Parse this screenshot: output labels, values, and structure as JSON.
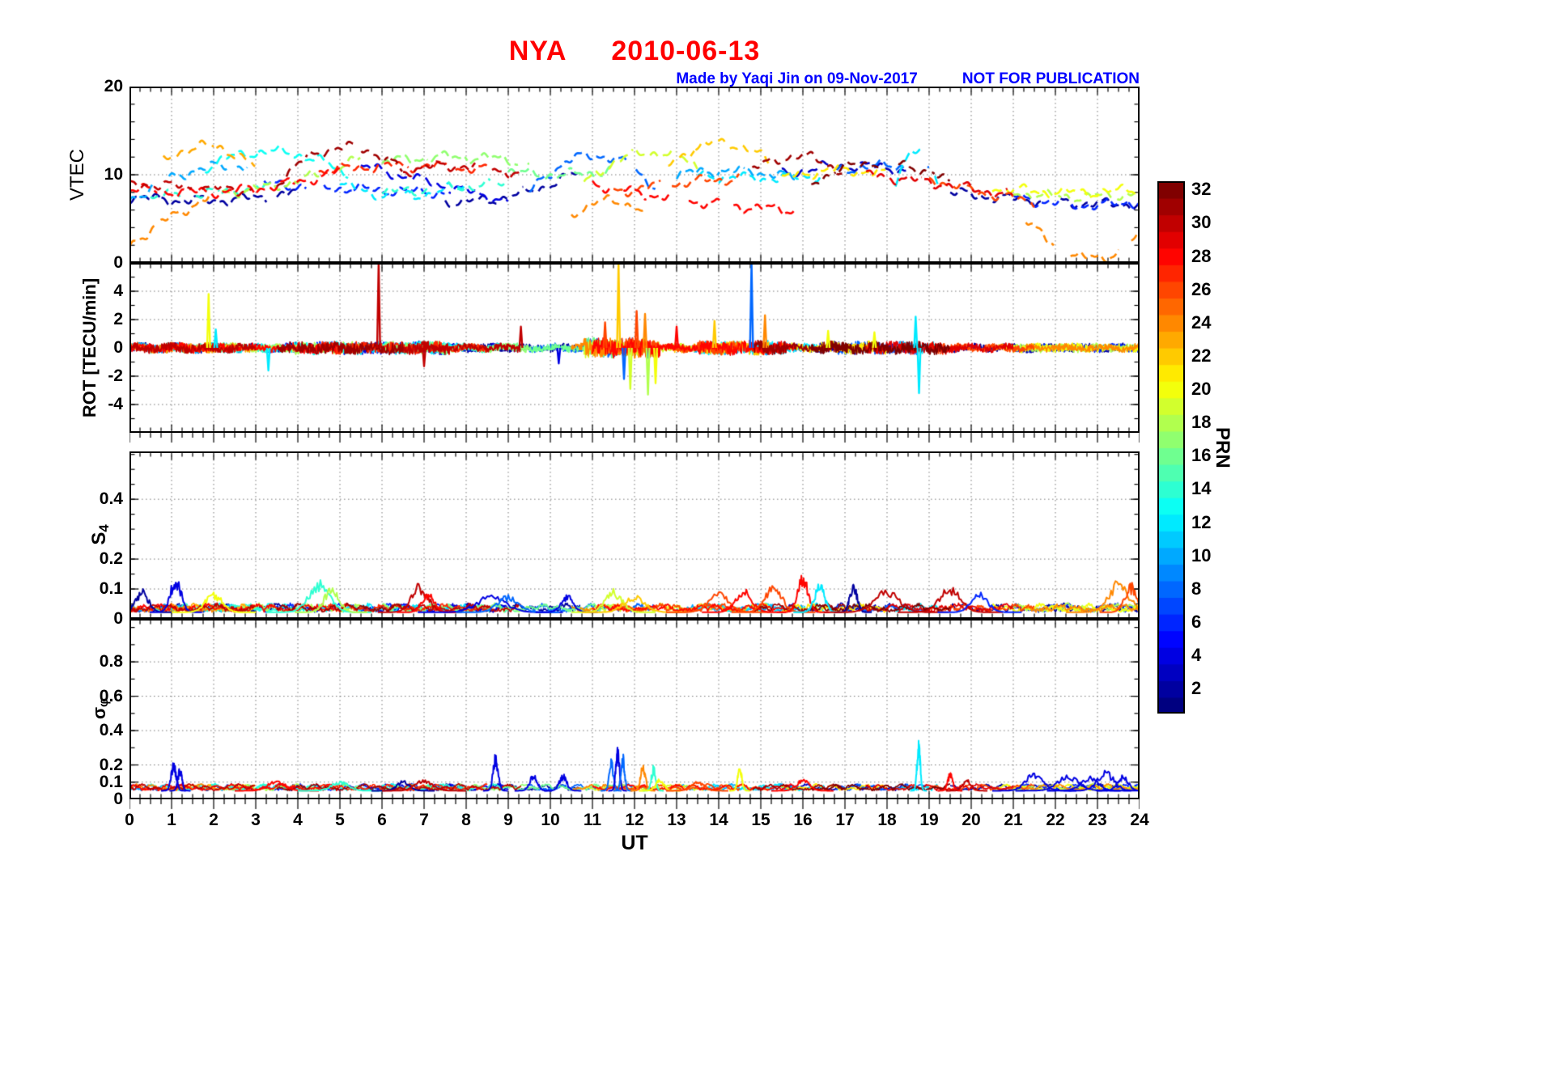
{
  "title": {
    "station": "NYA",
    "date": "2010-06-13",
    "color": "#ff0000"
  },
  "annotation": {
    "made_by": "Made by Yaqi Jin on 09-Nov-2017",
    "notice": "NOT FOR PUBLICATION",
    "color": "#0000ff"
  },
  "xaxis": {
    "label": "UT",
    "min": 0,
    "max": 24,
    "minor_step": 0.25,
    "ticks": [
      0,
      1,
      2,
      3,
      4,
      5,
      6,
      7,
      8,
      9,
      10,
      11,
      12,
      13,
      14,
      15,
      16,
      17,
      18,
      19,
      20,
      21,
      22,
      23,
      24
    ]
  },
  "colorbar": {
    "label": "PRN",
    "colormap": "jet",
    "min": 0.5,
    "max": 32.5,
    "ticks": [
      2,
      4,
      6,
      8,
      10,
      12,
      14,
      16,
      18,
      20,
      22,
      24,
      26,
      28,
      30,
      32
    ]
  },
  "chart_data": [
    {
      "name": "VTEC",
      "type": "line",
      "ylabel": "VTEC",
      "ylabel_sub": "",
      "ylim": [
        0,
        20
      ],
      "yminor": 2,
      "grid_y": [
        10
      ],
      "yticks": [
        {
          "v": 0,
          "label": "0"
        },
        {
          "v": 10,
          "label": "10"
        },
        {
          "v": 20,
          "label": "20"
        }
      ],
      "style": "dashed satellite passes, colored by PRN (jet colormap)",
      "arcs": [
        {
          "prn": 24,
          "t0": 0,
          "t1": 2.2,
          "y": [
            2,
            5.5,
            8
          ]
        },
        {
          "prn": 23,
          "t0": 0.8,
          "t1": 3,
          "y": [
            11.5,
            13.2,
            10.8
          ]
        },
        {
          "prn": 28,
          "t0": 0,
          "t1": 5,
          "y": [
            8.5,
            8.2,
            10.4
          ]
        },
        {
          "prn": 30,
          "t0": 0,
          "t1": 3,
          "y": [
            9,
            8.6,
            8.2
          ]
        },
        {
          "prn": 2,
          "t0": 0,
          "t1": 4,
          "y": [
            7.5,
            7.1,
            8
          ]
        },
        {
          "prn": 10,
          "t0": 0,
          "t1": 2.8,
          "y": [
            7,
            10.3,
            11
          ]
        },
        {
          "prn": 13,
          "t0": 1.8,
          "t1": 5.2,
          "y": [
            10.8,
            12.6,
            10
          ]
        },
        {
          "prn": 18,
          "t0": 2.2,
          "t1": 5.5,
          "y": [
            8,
            9.2,
            11.8
          ]
        },
        {
          "prn": 31,
          "t0": 3.5,
          "t1": 6.5,
          "y": [
            9,
            13.1,
            10.4
          ]
        },
        {
          "prn": 6,
          "t0": 3.2,
          "t1": 7.5,
          "y": [
            9,
            8.4,
            8
          ]
        },
        {
          "prn": 4,
          "t0": 5.5,
          "t1": 9,
          "y": [
            11,
            9,
            7
          ]
        },
        {
          "prn": 12,
          "t0": 5,
          "t1": 8,
          "y": [
            9,
            7.6,
            9
          ]
        },
        {
          "prn": 17,
          "t0": 6,
          "t1": 9.5,
          "y": [
            11.4,
            12,
            11.4
          ]
        },
        {
          "prn": 27,
          "t0": 4.5,
          "t1": 8.5,
          "y": [
            10.4,
            11,
            10.5
          ]
        },
        {
          "prn": 30,
          "t0": 6.5,
          "t1": 9.3,
          "y": [
            10.4,
            11,
            10
          ]
        },
        {
          "prn": 2,
          "t0": 7.5,
          "t1": 10.7,
          "y": [
            7,
            7.6,
            10.4
          ]
        },
        {
          "prn": 8,
          "t0": 9.5,
          "t1": 12.5,
          "y": [
            8,
            12.2,
            8.5
          ]
        },
        {
          "prn": 19,
          "t0": 10.8,
          "t1": 13.5,
          "y": [
            9,
            12.4,
            11
          ]
        },
        {
          "prn": 24,
          "t0": 10.5,
          "t1": 12.3,
          "y": [
            5.5,
            7,
            5.6
          ]
        },
        {
          "prn": 28,
          "t0": 11,
          "t1": 15.8,
          "y": [
            9,
            7,
            6
          ]
        },
        {
          "prn": 26,
          "t0": 11.5,
          "t1": 14.5,
          "y": [
            8,
            9,
            9.6
          ]
        },
        {
          "prn": 22,
          "t0": 12.8,
          "t1": 15.2,
          "y": [
            11,
            13.6,
            11.4
          ]
        },
        {
          "prn": 12,
          "t0": 13.5,
          "t1": 16.5,
          "y": [
            10,
            9.6,
            10
          ]
        },
        {
          "prn": 31,
          "t0": 14.8,
          "t1": 17,
          "y": [
            10.4,
            12.1,
            10
          ]
        },
        {
          "prn": 3,
          "t0": 15.5,
          "t1": 18.5,
          "y": [
            10,
            11,
            10.4
          ]
        },
        {
          "prn": 32,
          "t0": 16.2,
          "t1": 19.5,
          "y": [
            9,
            11.4,
            9
          ]
        },
        {
          "prn": 12,
          "t0": 18.2,
          "t1": 19.2,
          "y": [
            9,
            13,
            9
          ]
        },
        {
          "prn": 29,
          "t0": 17.5,
          "t1": 21,
          "y": [
            10,
            9,
            7.6
          ]
        },
        {
          "prn": 26,
          "t0": 19,
          "t1": 21.5,
          "y": [
            9.6,
            8,
            7
          ]
        },
        {
          "prn": 2,
          "t0": 19.5,
          "t1": 24,
          "y": [
            8,
            7,
            6.6
          ]
        },
        {
          "prn": 6,
          "t0": 21,
          "t1": 24,
          "y": [
            7.6,
            6.6,
            7
          ]
        },
        {
          "prn": 18,
          "t0": 21,
          "t1": 24,
          "y": [
            8,
            7.5,
            8
          ]
        },
        {
          "prn": 24,
          "t0": 21.3,
          "t1": 24,
          "y": [
            5,
            0.6,
            3
          ]
        },
        {
          "prn": 20,
          "t0": 20.5,
          "t1": 24,
          "y": [
            8.6,
            8,
            8.4
          ]
        },
        {
          "prn": 14,
          "t0": 0.5,
          "t1": 3.5,
          "y": [
            7.5,
            8,
            8.6
          ]
        },
        {
          "prn": 16,
          "t0": 9,
          "t1": 11.5,
          "y": [
            10.4,
            10,
            10.5
          ]
        },
        {
          "prn": 10,
          "t0": 13,
          "t1": 16,
          "y": [
            10,
            10.4,
            9.5
          ]
        },
        {
          "prn": 21,
          "t0": 15.5,
          "t1": 18,
          "y": [
            9.5,
            10.5,
            10
          ]
        },
        {
          "prn": 8,
          "t0": 16.8,
          "t1": 19,
          "y": [
            10.4,
            11,
            10.6
          ]
        },
        {
          "prn": 14,
          "t0": 6,
          "t1": 9,
          "y": [
            8,
            8.5,
            9
          ]
        }
      ]
    },
    {
      "name": "ROT",
      "type": "line",
      "ylabel": "ROT [TECU/min]",
      "ylabel_sub": "",
      "ylim": [
        -6,
        6
      ],
      "yminor": 1,
      "grid_y": [
        -4,
        -2,
        0,
        2,
        4
      ],
      "yticks": [
        {
          "v": -4,
          "label": "-4"
        },
        {
          "v": -2,
          "label": "-2"
        },
        {
          "v": 0,
          "label": "0"
        },
        {
          "v": 2,
          "label": "2"
        },
        {
          "v": 4,
          "label": "4"
        }
      ],
      "noise_amp": 0.42,
      "activity": [
        {
          "t0": 10.8,
          "t1": 12.6,
          "mult": 2.6
        },
        {
          "t0": 3.8,
          "t1": 7.6,
          "mult": 1.6
        },
        {
          "t0": 13.5,
          "t1": 15.6,
          "mult": 1.8
        },
        {
          "t0": 16.4,
          "t1": 19.4,
          "mult": 1.6
        },
        {
          "t0": 0,
          "t1": 2.5,
          "mult": 1.2
        }
      ],
      "events": [
        {
          "t": 1.88,
          "prn": 20,
          "amp": 3.8
        },
        {
          "t": 2.05,
          "prn": 12,
          "amp": 1.3
        },
        {
          "t": 3.3,
          "prn": 12,
          "amp": -1.6
        },
        {
          "t": 5.92,
          "prn": 30,
          "amp": 6
        },
        {
          "t": 7.0,
          "prn": 30,
          "amp": -1.3
        },
        {
          "t": 9.3,
          "prn": 30,
          "amp": 1.5
        },
        {
          "t": 10.2,
          "prn": 4,
          "amp": -1.1
        },
        {
          "t": 11.3,
          "prn": 26,
          "amp": 1.8
        },
        {
          "t": 11.62,
          "prn": 22,
          "amp": 6
        },
        {
          "t": 11.75,
          "prn": 8,
          "amp": -2.2
        },
        {
          "t": 11.9,
          "prn": 19,
          "amp": -2.9
        },
        {
          "t": 12.05,
          "prn": 26,
          "amp": 2.6
        },
        {
          "t": 12.25,
          "prn": 24,
          "amp": 2.4
        },
        {
          "t": 12.32,
          "prn": 18,
          "amp": -3.3
        },
        {
          "t": 12.5,
          "prn": 20,
          "amp": -2.5
        },
        {
          "t": 13.0,
          "prn": 28,
          "amp": 1.5
        },
        {
          "t": 13.9,
          "prn": 22,
          "amp": 1.9
        },
        {
          "t": 14.78,
          "prn": 8,
          "amp": 6
        },
        {
          "t": 15.1,
          "prn": 24,
          "amp": 2.3
        },
        {
          "t": 16.6,
          "prn": 20,
          "amp": 1.2
        },
        {
          "t": 17.7,
          "prn": 20,
          "amp": 1.1
        },
        {
          "t": 18.68,
          "prn": 12,
          "amp": 2.2
        },
        {
          "t": 18.76,
          "prn": 12,
          "amp": -3.2
        }
      ]
    },
    {
      "name": "S4",
      "type": "line",
      "ylabel": "S",
      "ylabel_sub": "4",
      "ylim": [
        0,
        0.56
      ],
      "yminor": 0.05,
      "grid_y": [
        0.1,
        0.2,
        0.4
      ],
      "yticks": [
        {
          "v": 0,
          "label": "0"
        },
        {
          "v": 0.1,
          "label": "0.1"
        },
        {
          "v": 0.2,
          "label": "0.2"
        },
        {
          "v": 0.4,
          "label": "0.4"
        }
      ],
      "base": 0.022,
      "events": [
        {
          "t": 0.3,
          "prn": 2,
          "amp": 0.08,
          "w": 0.3
        },
        {
          "t": 1.1,
          "prn": 4,
          "amp": 0.13,
          "w": 0.25
        },
        {
          "t": 2.0,
          "prn": 20,
          "amp": 0.07,
          "w": 0.4
        },
        {
          "t": 4.5,
          "prn": 14,
          "amp": 0.11,
          "w": 0.5
        },
        {
          "t": 4.8,
          "prn": 18,
          "amp": 0.09,
          "w": 0.35
        },
        {
          "t": 6.9,
          "prn": 30,
          "amp": 0.1,
          "w": 0.4
        },
        {
          "t": 7.1,
          "prn": 28,
          "amp": 0.07,
          "w": 0.3
        },
        {
          "t": 8.6,
          "prn": 4,
          "amp": 0.06,
          "w": 0.7
        },
        {
          "t": 9.0,
          "prn": 8,
          "amp": 0.06,
          "w": 0.5
        },
        {
          "t": 10.4,
          "prn": 4,
          "amp": 0.06,
          "w": 0.3
        },
        {
          "t": 11.5,
          "prn": 19,
          "amp": 0.08,
          "w": 0.4
        },
        {
          "t": 12.0,
          "prn": 22,
          "amp": 0.06,
          "w": 0.5
        },
        {
          "t": 14.0,
          "prn": 26,
          "amp": 0.07,
          "w": 0.5
        },
        {
          "t": 14.6,
          "prn": 28,
          "amp": 0.08,
          "w": 0.4
        },
        {
          "t": 15.3,
          "prn": 26,
          "amp": 0.1,
          "w": 0.4
        },
        {
          "t": 16.0,
          "prn": 28,
          "amp": 0.13,
          "w": 0.25
        },
        {
          "t": 16.4,
          "prn": 12,
          "amp": 0.1,
          "w": 0.25
        },
        {
          "t": 17.2,
          "prn": 2,
          "amp": 0.1,
          "w": 0.18
        },
        {
          "t": 18.0,
          "prn": 30,
          "amp": 0.08,
          "w": 0.6
        },
        {
          "t": 19.5,
          "prn": 30,
          "amp": 0.09,
          "w": 0.5
        },
        {
          "t": 20.2,
          "prn": 6,
          "amp": 0.07,
          "w": 0.4
        },
        {
          "t": 23.5,
          "prn": 24,
          "amp": 0.11,
          "w": 0.5
        },
        {
          "t": 23.8,
          "prn": 26,
          "amp": 0.1,
          "w": 0.3
        }
      ]
    },
    {
      "name": "sigma_phi",
      "type": "line",
      "ylabel": "σ",
      "ylabel_sub": "φ",
      "ylim": [
        0,
        1.05
      ],
      "yminor": 0.1,
      "grid_y": [
        0.1,
        0.2,
        0.4,
        0.6,
        0.8
      ],
      "yticks": [
        {
          "v": 0,
          "label": "0"
        },
        {
          "v": 0.1,
          "label": "0.1"
        },
        {
          "v": 0.2,
          "label": "0.2"
        },
        {
          "v": 0.4,
          "label": "0.4"
        },
        {
          "v": 0.6,
          "label": "0.6"
        },
        {
          "v": 0.8,
          "label": "0.8"
        }
      ],
      "base": 0.05,
      "events": [
        {
          "t": 1.05,
          "prn": 4,
          "amp": 0.17,
          "w": 0.12
        },
        {
          "t": 1.2,
          "prn": 4,
          "amp": 0.14,
          "w": 0.1
        },
        {
          "t": 3.5,
          "prn": 28,
          "amp": 0.07,
          "w": 0.4
        },
        {
          "t": 5.0,
          "prn": 14,
          "amp": 0.06,
          "w": 0.4
        },
        {
          "t": 6.5,
          "prn": 2,
          "amp": 0.06,
          "w": 0.3
        },
        {
          "t": 7.0,
          "prn": 30,
          "amp": 0.07,
          "w": 0.4
        },
        {
          "t": 8.7,
          "prn": 4,
          "amp": 0.22,
          "w": 0.12
        },
        {
          "t": 9.6,
          "prn": 4,
          "amp": 0.1,
          "w": 0.18
        },
        {
          "t": 10.3,
          "prn": 4,
          "amp": 0.1,
          "w": 0.18
        },
        {
          "t": 11.45,
          "prn": 8,
          "amp": 0.19,
          "w": 0.1
        },
        {
          "t": 11.6,
          "prn": 4,
          "amp": 0.26,
          "w": 0.09
        },
        {
          "t": 11.72,
          "prn": 8,
          "amp": 0.22,
          "w": 0.09
        },
        {
          "t": 12.2,
          "prn": 24,
          "amp": 0.16,
          "w": 0.12
        },
        {
          "t": 12.45,
          "prn": 14,
          "amp": 0.15,
          "w": 0.1
        },
        {
          "t": 12.6,
          "prn": 20,
          "amp": 0.07,
          "w": 0.2
        },
        {
          "t": 13.5,
          "prn": 26,
          "amp": 0.06,
          "w": 0.3
        },
        {
          "t": 14.5,
          "prn": 20,
          "amp": 0.15,
          "w": 0.1
        },
        {
          "t": 16.0,
          "prn": 28,
          "amp": 0.07,
          "w": 0.3
        },
        {
          "t": 18.75,
          "prn": 12,
          "amp": 0.3,
          "w": 0.08
        },
        {
          "t": 19.5,
          "prn": 28,
          "amp": 0.11,
          "w": 0.12
        },
        {
          "t": 19.9,
          "prn": 30,
          "amp": 0.07,
          "w": 0.2
        },
        {
          "t": 21.5,
          "prn": 4,
          "amp": 0.12,
          "w": 0.4
        },
        {
          "t": 22.3,
          "prn": 4,
          "amp": 0.1,
          "w": 0.5
        },
        {
          "t": 22.8,
          "prn": 4,
          "amp": 0.09,
          "w": 0.4
        },
        {
          "t": 23.2,
          "prn": 4,
          "amp": 0.12,
          "w": 0.4
        },
        {
          "t": 23.6,
          "prn": 4,
          "amp": 0.1,
          "w": 0.25
        }
      ]
    }
  ]
}
